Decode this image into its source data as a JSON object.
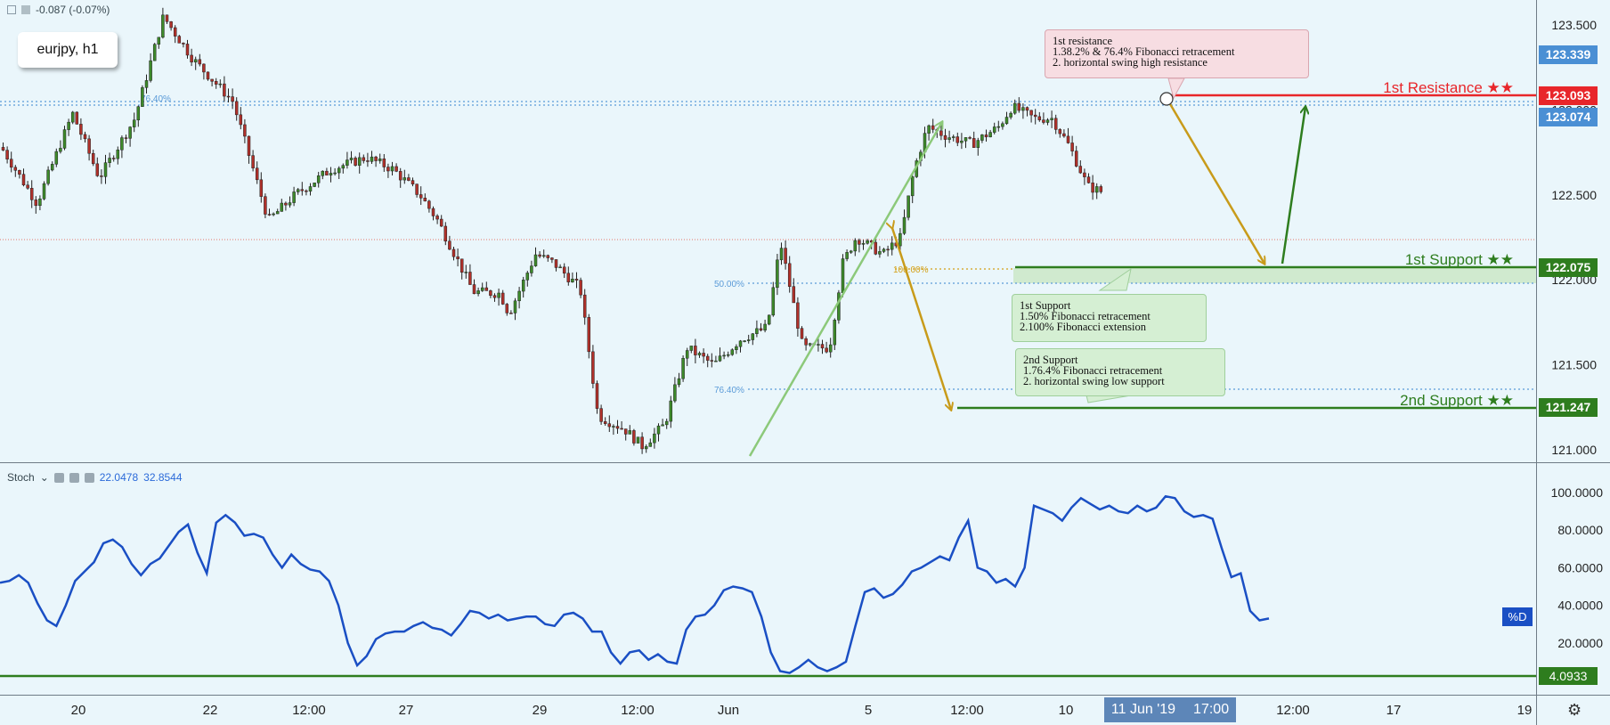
{
  "header": {
    "change_text": "-0.087 (-0.07%)",
    "symbol": "eurjpy, h1"
  },
  "price_axis": {
    "ticks": [
      "123.500",
      "123.000",
      "122.500",
      "122.000",
      "121.500",
      "121.000"
    ],
    "tick_values": [
      123.5,
      123.0,
      122.5,
      122.0,
      121.5,
      121.0
    ]
  },
  "price_badges": [
    {
      "label": "123.339",
      "value": 123.339,
      "color": "#4a8fd4"
    },
    {
      "label": "123.093",
      "value": 123.093,
      "color": "#e8262a"
    },
    {
      "label": "123.074",
      "value": 123.074,
      "color": "#4a8fd4"
    },
    {
      "label": "122.075",
      "value": 122.075,
      "color": "#2e7d1e"
    },
    {
      "label": "121.247",
      "value": 121.247,
      "color": "#2e7d1e"
    }
  ],
  "levels": {
    "resistance1": {
      "label": "1st Resistance ★★",
      "value": 123.093,
      "color": "#e8262a"
    },
    "support1": {
      "label": "1st Support ★★",
      "value": 122.075,
      "color": "#2e7d1e"
    },
    "support2": {
      "label": "2nd Support ★★",
      "value": 121.247,
      "color": "#2e7d1e"
    }
  },
  "fib_labels": {
    "fib_764_top": "76.40%",
    "fib_50": "50.00%",
    "fib_100": "100.00%",
    "fib_764_low": "76.40%"
  },
  "notes": {
    "resistance": "1st resistance\n1.38.2% & 76.4% Fibonacci retracement\n2. horizontal swing high resistance",
    "support1": "1st Support\n1.50% Fibonacci retracement\n2.100% Fibonacci extension",
    "support2": "2nd Support\n1.76.4% Fibonacci retracement\n2. horizontal swing low support"
  },
  "stoch": {
    "label": "Stoch",
    "value1": "22.0478",
    "value2": "32.8544",
    "axis_ticks": [
      "100.0000",
      "80.0000",
      "60.0000",
      "40.0000",
      "20.0000"
    ],
    "axis_values": [
      100,
      80,
      60,
      40,
      20
    ],
    "level_label": "4.0933",
    "level_value": 4.0933,
    "series_label": "%D",
    "d_values": [
      52,
      53,
      56,
      52,
      41,
      32,
      29,
      40,
      53,
      58,
      63,
      73,
      75,
      71,
      62,
      56,
      62,
      65,
      72,
      79,
      83,
      68,
      57,
      84,
      88,
      84,
      77,
      78,
      76,
      67,
      60,
      67,
      62,
      59,
      58,
      53,
      40,
      20,
      8,
      13,
      22,
      25,
      26,
      26,
      29,
      31,
      28,
      27,
      24,
      30,
      37,
      36,
      33,
      35,
      32,
      33,
      34,
      34,
      30,
      29,
      35,
      36,
      33,
      26,
      26,
      15,
      9,
      15,
      16,
      11,
      14,
      10,
      9,
      27,
      34,
      35,
      40,
      48,
      50,
      49,
      47,
      34,
      15,
      5,
      4,
      7,
      11,
      7,
      5,
      7,
      10,
      29,
      47,
      49,
      44,
      46,
      51,
      58,
      60,
      63,
      66,
      64,
      76,
      85,
      60,
      58,
      52,
      54,
      50,
      60,
      93,
      91,
      89,
      85,
      92,
      97,
      94,
      91,
      93,
      90,
      89,
      93,
      90,
      92,
      98,
      97,
      90,
      87,
      88,
      86,
      70,
      55,
      57,
      37,
      32,
      33
    ]
  },
  "time_axis": {
    "labels": [
      "20",
      "22",
      "12:00",
      "27",
      "29",
      "12:00",
      "Jun",
      "5",
      "12:00",
      "10",
      "12:00",
      "17",
      "19"
    ],
    "current_date": "11 Jun '19",
    "current_time": "17:00"
  },
  "colors": {
    "background": "#eaf6fb",
    "bull_candle": "#3d8a2a",
    "bear_candle": "#b0302a",
    "stoch_line": "#1a4fc4",
    "projection_green": "#8cc97a",
    "projection_dark_green": "#2e7d1e",
    "projection_gold": "#c89b1a"
  },
  "chart_data": {
    "type": "candlestick",
    "title": "eurjpy, h1",
    "ylim": [
      120.95,
      123.6
    ],
    "path_anchors": [
      [
        0,
        122.78
      ],
      [
        40,
        122.45
      ],
      [
        80,
        122.98
      ],
      [
        110,
        122.6
      ],
      [
        150,
        122.95
      ],
      [
        182,
        123.55
      ],
      [
        215,
        123.3
      ],
      [
        260,
        123.05
      ],
      [
        300,
        122.35
      ],
      [
        330,
        122.5
      ],
      [
        370,
        122.65
      ],
      [
        410,
        122.72
      ],
      [
        440,
        122.65
      ],
      [
        470,
        122.5
      ],
      [
        490,
        122.35
      ],
      [
        530,
        121.93
      ],
      [
        560,
        121.92
      ],
      [
        570,
        121.8
      ],
      [
        600,
        122.15
      ],
      [
        620,
        122.1
      ],
      [
        650,
        121.95
      ],
      [
        670,
        121.2
      ],
      [
        700,
        121.12
      ],
      [
        720,
        121.02
      ],
      [
        745,
        121.15
      ],
      [
        770,
        121.6
      ],
      [
        800,
        121.5
      ],
      [
        830,
        121.65
      ],
      [
        860,
        121.72
      ],
      [
        875,
        122.22
      ],
      [
        900,
        121.6
      ],
      [
        930,
        121.6
      ],
      [
        945,
        122.1
      ],
      [
        960,
        122.25
      ],
      [
        990,
        122.15
      ],
      [
        1010,
        122.25
      ],
      [
        1025,
        122.65
      ],
      [
        1040,
        122.9
      ],
      [
        1060,
        122.85
      ],
      [
        1090,
        122.8
      ],
      [
        1120,
        122.9
      ],
      [
        1135,
        123.02
      ],
      [
        1160,
        122.95
      ],
      [
        1180,
        122.95
      ],
      [
        1200,
        122.78
      ],
      [
        1220,
        122.55
      ],
      [
        1235,
        122.52
      ],
      [
        1240,
        122.22
      ]
    ]
  }
}
